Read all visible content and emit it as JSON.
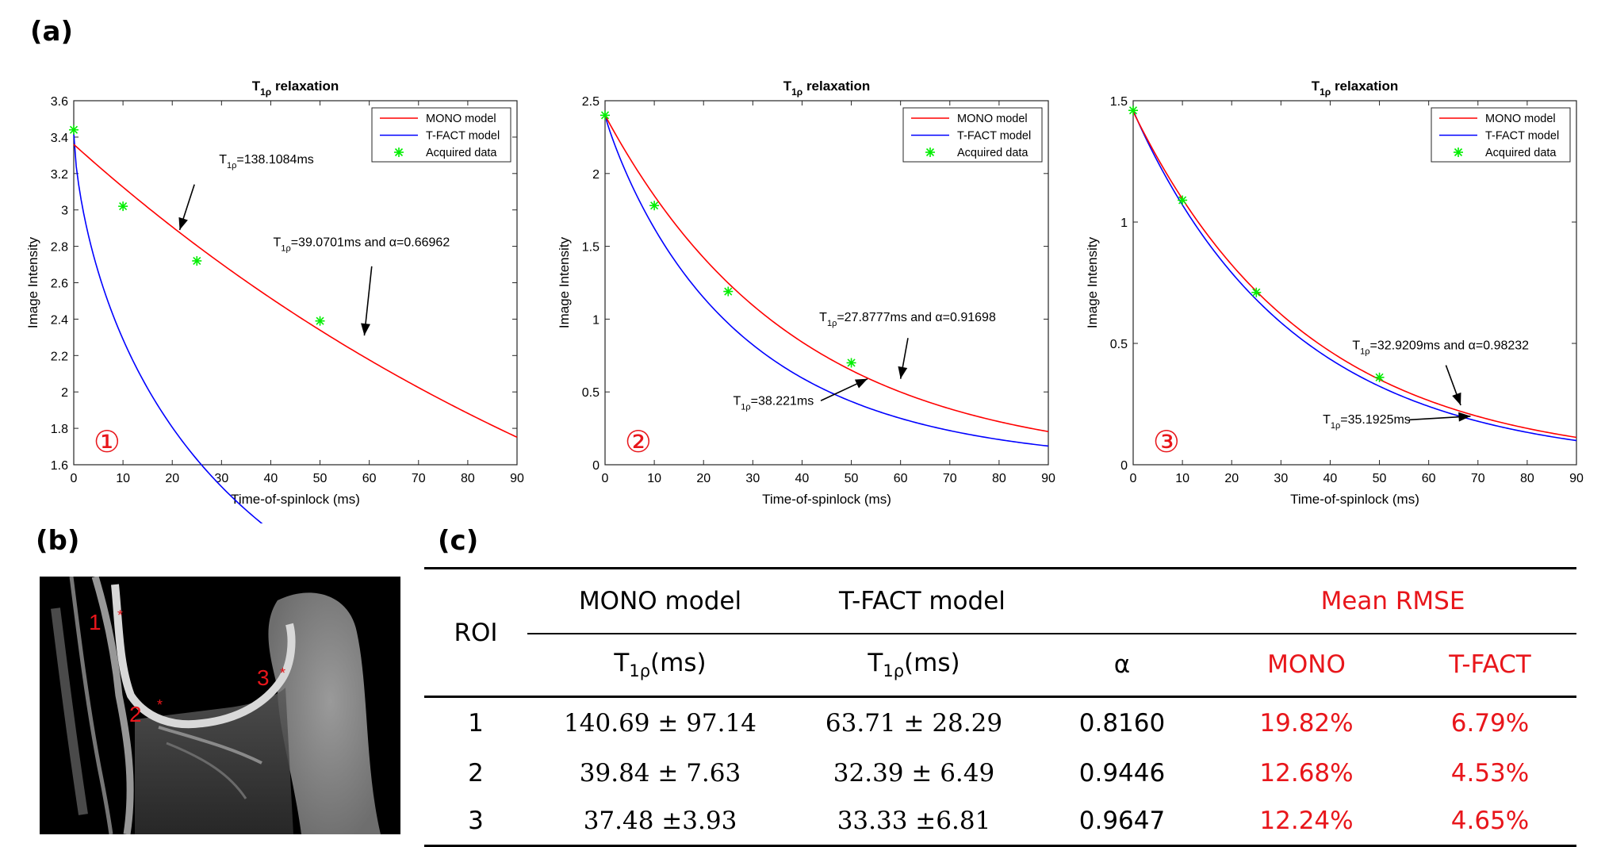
{
  "labels": {
    "a": "(a)",
    "b": "(b)",
    "c": "(c)"
  },
  "colors": {
    "mono": "#ff0000",
    "tfact": "#0000ff",
    "acquired": "#00ee00",
    "table_red": "#e8161b"
  },
  "chart_data": [
    {
      "type": "line",
      "title": "T1ρ relaxation",
      "xlabel": "Time-of-spinlock (ms)",
      "ylabel": "Image Intensity",
      "xlim": [
        0,
        90
      ],
      "ylim": [
        1.6,
        3.6
      ],
      "xticks": [
        0,
        10,
        20,
        30,
        40,
        50,
        60,
        70,
        80,
        90
      ],
      "yticks": [
        1.6,
        1.8,
        2,
        2.2,
        2.4,
        2.6,
        2.8,
        3,
        3.2,
        3.4,
        3.6
      ],
      "ytick_labels": [
        "1.6",
        "1.8",
        "2",
        "2.2",
        "2.4",
        "2.6",
        "2.8",
        "3",
        "3.2",
        "3.4",
        "3.6"
      ],
      "legend": {
        "placement": "top-right",
        "entries": [
          "MONO model",
          "T-FACT model",
          "Acquired data"
        ]
      },
      "roi_mark": "①",
      "acquired": {
        "x": [
          0,
          10,
          25,
          50
        ],
        "y": [
          3.44,
          3.02,
          2.72,
          2.39
        ]
      },
      "mono": {
        "A": 3.36,
        "T": 138.1084
      },
      "tfact": {
        "A": 3.42,
        "T": 39.0701,
        "alpha": 0.66962
      },
      "annotations": [
        {
          "pre": "T",
          "sub": "1ρ",
          "post": "=138.1084ms",
          "text_x": 29.5,
          "text_y": 3.255,
          "arrow_from": [
            24.5,
            3.14
          ],
          "arrow_to": [
            21.5,
            2.89
          ]
        },
        {
          "pre": "T",
          "sub": "1ρ",
          "post": "=39.0701ms and α=0.66962",
          "text_x": 40.5,
          "text_y": 2.8,
          "arrow_from": [
            60.5,
            2.69
          ],
          "arrow_to": [
            59,
            2.31
          ]
        }
      ]
    },
    {
      "type": "line",
      "title": "T1ρ relaxation",
      "xlabel": "Time-of-spinlock (ms)",
      "ylabel": "Image Intensity",
      "xlim": [
        0,
        90
      ],
      "ylim": [
        0,
        2.5
      ],
      "xticks": [
        0,
        10,
        20,
        30,
        40,
        50,
        60,
        70,
        80,
        90
      ],
      "yticks": [
        0,
        0.5,
        1,
        1.5,
        2,
        2.5
      ],
      "ytick_labels": [
        "0",
        "0.5",
        "1",
        "1.5",
        "2",
        "2.5"
      ],
      "legend": {
        "placement": "top-right",
        "entries": [
          "MONO model",
          "T-FACT model",
          "Acquired data"
        ]
      },
      "roi_mark": "②",
      "acquired": {
        "x": [
          0,
          10,
          25,
          50
        ],
        "y": [
          2.4,
          1.78,
          1.19,
          0.7
        ]
      },
      "mono": {
        "A": 2.4,
        "T": 38.221
      },
      "tfact": {
        "A": 2.4,
        "T": 27.8777,
        "alpha": 0.91698
      },
      "annotations": [
        {
          "pre": "T",
          "sub": "1ρ",
          "post": "=27.8777ms and α=0.91698",
          "text_x": 43.5,
          "text_y": 0.985,
          "arrow_from": [
            61.5,
            0.87
          ],
          "arrow_to": [
            60,
            0.59
          ]
        },
        {
          "pre": "T",
          "sub": "1ρ",
          "post": "=38.221ms",
          "text_x": 26,
          "text_y": 0.41,
          "arrow_from": [
            43.8,
            0.44
          ],
          "arrow_to": [
            53.3,
            0.59
          ]
        }
      ]
    },
    {
      "type": "line",
      "title": "T1ρ relaxation",
      "xlabel": "Time-of-spinlock (ms)",
      "ylabel": "Image Intensity",
      "xlim": [
        0,
        90
      ],
      "ylim": [
        0,
        1.5
      ],
      "xticks": [
        0,
        10,
        20,
        30,
        40,
        50,
        60,
        70,
        80,
        90
      ],
      "yticks": [
        0,
        0.5,
        1,
        1.5
      ],
      "ytick_labels": [
        "0",
        "0.5",
        "1",
        "1.5"
      ],
      "legend": {
        "placement": "top-right",
        "entries": [
          "MONO model",
          "T-FACT model",
          "Acquired data"
        ]
      },
      "roi_mark": "③",
      "acquired": {
        "x": [
          0,
          10,
          25,
          50
        ],
        "y": [
          1.46,
          1.09,
          0.71,
          0.36
        ]
      },
      "mono": {
        "A": 1.455,
        "T": 35.1925
      },
      "tfact": {
        "A": 1.46,
        "T": 32.9209,
        "alpha": 0.98232
      },
      "annotations": [
        {
          "pre": "T",
          "sub": "1ρ",
          "post": "=32.9209ms and α=0.98232",
          "text_x": 44.5,
          "text_y": 0.475,
          "arrow_from": [
            63.5,
            0.41
          ],
          "arrow_to": [
            66.5,
            0.245
          ]
        },
        {
          "pre": "T",
          "sub": "1ρ",
          "post": "=35.1925ms",
          "text_x": 38.5,
          "text_y": 0.17,
          "arrow_from": [
            56,
            0.185
          ],
          "arrow_to": [
            68.5,
            0.2
          ]
        }
      ]
    }
  ],
  "mri": {
    "roi_labels": [
      "1",
      "2",
      "3"
    ],
    "roi_star": "*"
  },
  "table": {
    "roi_header": "ROI",
    "group_headers": [
      "MONO model",
      "T-FACT model",
      "Mean RMSE"
    ],
    "sub_headers": {
      "t1rho_pre": "T",
      "t1rho_sub": "1ρ",
      "t1rho_post": "(ms)",
      "alpha": "α",
      "mono": "MONO",
      "tfact": "T-FACT"
    },
    "rows": [
      {
        "roi": "1",
        "mono_t1rho": "140.69 ± 97.14",
        "tfact_t1rho": "63.71 ± 28.29",
        "alpha": "0.8160",
        "rmse_mono": "19.82%",
        "rmse_tfact": "6.79%"
      },
      {
        "roi": "2",
        "mono_t1rho": "39.84 ± 7.63",
        "tfact_t1rho": "32.39 ± 6.49",
        "alpha": "0.9446",
        "rmse_mono": "12.68%",
        "rmse_tfact": "4.53%"
      },
      {
        "roi": "3",
        "mono_t1rho": "37.48 ±3.93",
        "tfact_t1rho": "33.33 ±6.81",
        "alpha": "0.9647",
        "rmse_mono": "12.24%",
        "rmse_tfact": "4.65%"
      }
    ]
  }
}
